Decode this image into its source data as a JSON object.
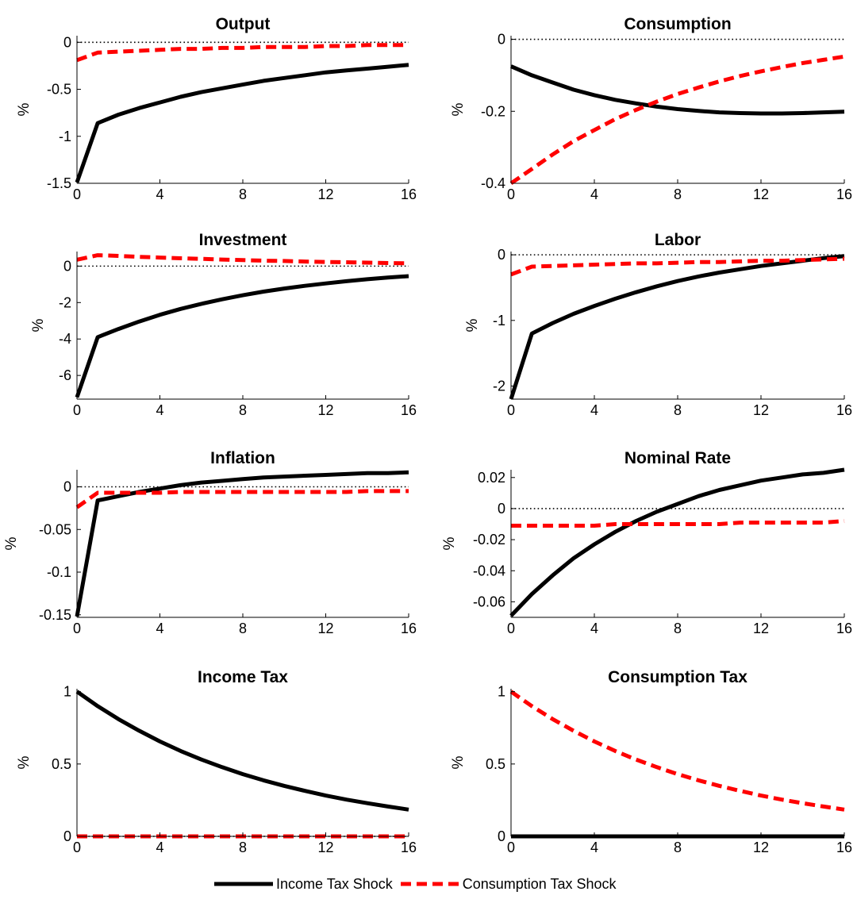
{
  "colors": {
    "income": "#000000",
    "consumption": "#ff0000"
  },
  "legend": {
    "placement": "bottom-center",
    "items": [
      {
        "key": "income",
        "label": "Income Tax Shock",
        "style": "solid"
      },
      {
        "key": "consumption",
        "label": "Consumption Tax Shock",
        "style": "dashed"
      }
    ]
  },
  "chart_data": [
    {
      "type": "line",
      "title": "Output",
      "ylabel": "%",
      "xlim": [
        0,
        16
      ],
      "ylim": [
        -1.5,
        0.07
      ],
      "xticks": [
        0,
        4,
        8,
        12,
        16
      ],
      "xtick_labels": [
        "0",
        "4",
        "8",
        "12",
        "16"
      ],
      "yticks": [
        -1.5,
        -1,
        -0.5,
        0
      ],
      "ytick_labels": [
        "-1.5",
        "-1",
        "-0.5",
        "0"
      ],
      "zero_line": true,
      "series": [
        {
          "name": "Income Tax Shock",
          "x": [
            0,
            1,
            2,
            3,
            4,
            5,
            6,
            7,
            8,
            9,
            10,
            11,
            12,
            13,
            14,
            15,
            16
          ],
          "values": [
            -1.49,
            -0.86,
            -0.77,
            -0.7,
            -0.64,
            -0.58,
            -0.53,
            -0.49,
            -0.45,
            -0.41,
            -0.38,
            -0.35,
            -0.32,
            -0.3,
            -0.28,
            -0.26,
            -0.24
          ]
        },
        {
          "name": "Consumption Tax Shock",
          "x": [
            0,
            1,
            2,
            3,
            4,
            5,
            6,
            7,
            8,
            9,
            10,
            11,
            12,
            13,
            14,
            15,
            16
          ],
          "values": [
            -0.19,
            -0.11,
            -0.1,
            -0.09,
            -0.08,
            -0.07,
            -0.07,
            -0.06,
            -0.06,
            -0.05,
            -0.05,
            -0.05,
            -0.04,
            -0.04,
            -0.03,
            -0.03,
            -0.03
          ]
        }
      ]
    },
    {
      "type": "line",
      "title": "Consumption",
      "ylabel": "%",
      "xlim": [
        0,
        16
      ],
      "ylim": [
        -0.4,
        0.01
      ],
      "xticks": [
        0,
        4,
        8,
        12,
        16
      ],
      "xtick_labels": [
        "0",
        "4",
        "8",
        "12",
        "16"
      ],
      "yticks": [
        -0.4,
        -0.2,
        0
      ],
      "ytick_labels": [
        "-0.4",
        "-0.2",
        "0"
      ],
      "zero_line": true,
      "series": [
        {
          "name": "Income Tax Shock",
          "x": [
            0,
            1,
            2,
            3,
            4,
            5,
            6,
            7,
            8,
            9,
            10,
            11,
            12,
            13,
            14,
            15,
            16
          ],
          "values": [
            -0.075,
            -0.1,
            -0.12,
            -0.14,
            -0.155,
            -0.168,
            -0.178,
            -0.187,
            -0.194,
            -0.199,
            -0.203,
            -0.205,
            -0.206,
            -0.206,
            -0.205,
            -0.203,
            -0.201
          ]
        },
        {
          "name": "Consumption Tax Shock",
          "x": [
            0,
            1,
            2,
            3,
            4,
            5,
            6,
            7,
            8,
            9,
            10,
            11,
            12,
            13,
            14,
            15,
            16
          ],
          "values": [
            -0.4,
            -0.36,
            -0.32,
            -0.283,
            -0.252,
            -0.222,
            -0.196,
            -0.173,
            -0.152,
            -0.134,
            -0.117,
            -0.102,
            -0.089,
            -0.077,
            -0.066,
            -0.057,
            -0.048
          ]
        }
      ]
    },
    {
      "type": "line",
      "title": "Investment",
      "ylabel": "%",
      "xlim": [
        0,
        16
      ],
      "ylim": [
        -7.3,
        0.8
      ],
      "xticks": [
        0,
        4,
        8,
        12,
        16
      ],
      "xtick_labels": [
        "0",
        "4",
        "8",
        "12",
        "16"
      ],
      "yticks": [
        -6,
        -4,
        -2,
        0
      ],
      "ytick_labels": [
        "-6",
        "-4",
        "-2",
        "0"
      ],
      "zero_line": true,
      "series": [
        {
          "name": "Income Tax Shock",
          "x": [
            0,
            1,
            2,
            3,
            4,
            5,
            6,
            7,
            8,
            9,
            10,
            11,
            12,
            13,
            14,
            15,
            16
          ],
          "values": [
            -7.2,
            -3.9,
            -3.45,
            -3.04,
            -2.67,
            -2.35,
            -2.07,
            -1.82,
            -1.6,
            -1.4,
            -1.23,
            -1.08,
            -0.95,
            -0.83,
            -0.72,
            -0.63,
            -0.55
          ]
        },
        {
          "name": "Consumption Tax Shock",
          "x": [
            0,
            1,
            2,
            3,
            4,
            5,
            6,
            7,
            8,
            9,
            10,
            11,
            12,
            13,
            14,
            15,
            16
          ],
          "values": [
            0.35,
            0.6,
            0.56,
            0.51,
            0.47,
            0.43,
            0.4,
            0.36,
            0.33,
            0.3,
            0.28,
            0.25,
            0.23,
            0.21,
            0.19,
            0.17,
            0.15
          ]
        }
      ]
    },
    {
      "type": "line",
      "title": "Labor",
      "ylabel": "%",
      "xlim": [
        0,
        16
      ],
      "ylim": [
        -2.2,
        0.05
      ],
      "xticks": [
        0,
        4,
        8,
        12,
        16
      ],
      "xtick_labels": [
        "0",
        "4",
        "8",
        "12",
        "16"
      ],
      "yticks": [
        -2,
        -1,
        0
      ],
      "ytick_labels": [
        "-2",
        "-1",
        "0"
      ],
      "zero_line": true,
      "series": [
        {
          "name": "Income Tax Shock",
          "x": [
            0,
            1,
            2,
            3,
            4,
            5,
            6,
            7,
            8,
            9,
            10,
            11,
            12,
            13,
            14,
            15,
            16
          ],
          "values": [
            -2.2,
            -1.2,
            -1.04,
            -0.9,
            -0.78,
            -0.67,
            -0.57,
            -0.48,
            -0.4,
            -0.33,
            -0.27,
            -0.22,
            -0.17,
            -0.13,
            -0.09,
            -0.05,
            -0.02
          ]
        },
        {
          "name": "Consumption Tax Shock",
          "x": [
            0,
            1,
            2,
            3,
            4,
            5,
            6,
            7,
            8,
            9,
            10,
            11,
            12,
            13,
            14,
            15,
            16
          ],
          "values": [
            -0.3,
            -0.18,
            -0.17,
            -0.16,
            -0.15,
            -0.14,
            -0.13,
            -0.13,
            -0.12,
            -0.11,
            -0.11,
            -0.1,
            -0.09,
            -0.09,
            -0.08,
            -0.07,
            -0.06
          ]
        }
      ]
    },
    {
      "type": "line",
      "title": "Inflation",
      "ylabel": "%",
      "xlim": [
        0,
        16
      ],
      "ylim": [
        -0.153,
        0.02
      ],
      "xticks": [
        0,
        4,
        8,
        12,
        16
      ],
      "xtick_labels": [
        "0",
        "4",
        "8",
        "12",
        "16"
      ],
      "yticks": [
        -0.15,
        -0.1,
        -0.05,
        0
      ],
      "ytick_labels": [
        "-0.15",
        "-0.1",
        "-0.05",
        "0"
      ],
      "zero_line": true,
      "series": [
        {
          "name": "Income Tax Shock",
          "x": [
            0,
            1,
            2,
            3,
            4,
            5,
            6,
            7,
            8,
            9,
            10,
            11,
            12,
            13,
            14,
            15,
            16
          ],
          "values": [
            -0.152,
            -0.016,
            -0.011,
            -0.006,
            -0.002,
            0.002,
            0.005,
            0.007,
            0.009,
            0.011,
            0.012,
            0.013,
            0.014,
            0.015,
            0.016,
            0.016,
            0.017
          ]
        },
        {
          "name": "Consumption Tax Shock",
          "x": [
            0,
            1,
            2,
            3,
            4,
            5,
            6,
            7,
            8,
            9,
            10,
            11,
            12,
            13,
            14,
            15,
            16
          ],
          "values": [
            -0.024,
            -0.007,
            -0.007,
            -0.007,
            -0.007,
            -0.006,
            -0.006,
            -0.006,
            -0.006,
            -0.006,
            -0.006,
            -0.006,
            -0.006,
            -0.006,
            -0.005,
            -0.005,
            -0.005
          ]
        }
      ]
    },
    {
      "type": "line",
      "title": "Nominal Rate",
      "ylabel": "%",
      "xlim": [
        0,
        16
      ],
      "ylim": [
        -0.07,
        0.025
      ],
      "xticks": [
        0,
        4,
        8,
        12,
        16
      ],
      "xtick_labels": [
        "0",
        "4",
        "8",
        "12",
        "16"
      ],
      "yticks": [
        -0.06,
        -0.04,
        -0.02,
        0,
        0.02
      ],
      "ytick_labels": [
        "-0.06",
        "-0.04",
        "-0.02",
        "0",
        "0.02"
      ],
      "zero_line": true,
      "series": [
        {
          "name": "Income Tax Shock",
          "x": [
            0,
            1,
            2,
            3,
            4,
            5,
            6,
            7,
            8,
            9,
            10,
            11,
            12,
            13,
            14,
            15,
            16
          ],
          "values": [
            -0.069,
            -0.055,
            -0.043,
            -0.032,
            -0.023,
            -0.015,
            -0.008,
            -0.002,
            0.003,
            0.008,
            0.012,
            0.015,
            0.018,
            0.02,
            0.022,
            0.023,
            0.025
          ]
        },
        {
          "name": "Consumption Tax Shock",
          "x": [
            0,
            1,
            2,
            3,
            4,
            5,
            6,
            7,
            8,
            9,
            10,
            11,
            12,
            13,
            14,
            15,
            16
          ],
          "values": [
            -0.011,
            -0.011,
            -0.011,
            -0.011,
            -0.011,
            -0.01,
            -0.01,
            -0.01,
            -0.01,
            -0.01,
            -0.01,
            -0.009,
            -0.009,
            -0.009,
            -0.009,
            -0.009,
            -0.008
          ]
        }
      ]
    },
    {
      "type": "line",
      "title": "Income Tax",
      "ylabel": "%",
      "xlim": [
        0,
        16
      ],
      "ylim": [
        0,
        1.02
      ],
      "xticks": [
        0,
        4,
        8,
        12,
        16
      ],
      "xtick_labels": [
        "0",
        "4",
        "8",
        "12",
        "16"
      ],
      "yticks": [
        0,
        0.5,
        1
      ],
      "ytick_labels": [
        "0",
        "0.5",
        "1"
      ],
      "zero_line": true,
      "series": [
        {
          "name": "Income Tax Shock",
          "x": [
            0,
            1,
            2,
            3,
            4,
            5,
            6,
            7,
            8,
            9,
            10,
            11,
            12,
            13,
            14,
            15,
            16
          ],
          "values": [
            1.0,
            0.9,
            0.81,
            0.73,
            0.656,
            0.59,
            0.531,
            0.478,
            0.43,
            0.387,
            0.349,
            0.314,
            0.282,
            0.254,
            0.229,
            0.206,
            0.185
          ]
        },
        {
          "name": "Consumption Tax Shock",
          "x": [
            0,
            1,
            2,
            3,
            4,
            5,
            6,
            7,
            8,
            9,
            10,
            11,
            12,
            13,
            14,
            15,
            16
          ],
          "values": [
            0,
            0,
            0,
            0,
            0,
            0,
            0,
            0,
            0,
            0,
            0,
            0,
            0,
            0,
            0,
            0,
            0
          ]
        }
      ]
    },
    {
      "type": "line",
      "title": "Consumption Tax",
      "ylabel": "%",
      "xlim": [
        0,
        16
      ],
      "ylim": [
        0,
        1.02
      ],
      "xticks": [
        0,
        4,
        8,
        12,
        16
      ],
      "xtick_labels": [
        "0",
        "4",
        "8",
        "12",
        "16"
      ],
      "yticks": [
        0,
        0.5,
        1
      ],
      "ytick_labels": [
        "0",
        "0.5",
        "1"
      ],
      "zero_line": true,
      "series": [
        {
          "name": "Income Tax Shock",
          "x": [
            0,
            1,
            2,
            3,
            4,
            5,
            6,
            7,
            8,
            9,
            10,
            11,
            12,
            13,
            14,
            15,
            16
          ],
          "values": [
            0,
            0,
            0,
            0,
            0,
            0,
            0,
            0,
            0,
            0,
            0,
            0,
            0,
            0,
            0,
            0,
            0
          ]
        },
        {
          "name": "Consumption Tax Shock",
          "x": [
            0,
            1,
            2,
            3,
            4,
            5,
            6,
            7,
            8,
            9,
            10,
            11,
            12,
            13,
            14,
            15,
            16
          ],
          "values": [
            1.0,
            0.9,
            0.81,
            0.73,
            0.656,
            0.59,
            0.531,
            0.478,
            0.43,
            0.387,
            0.349,
            0.314,
            0.282,
            0.254,
            0.229,
            0.206,
            0.185
          ]
        }
      ]
    }
  ]
}
